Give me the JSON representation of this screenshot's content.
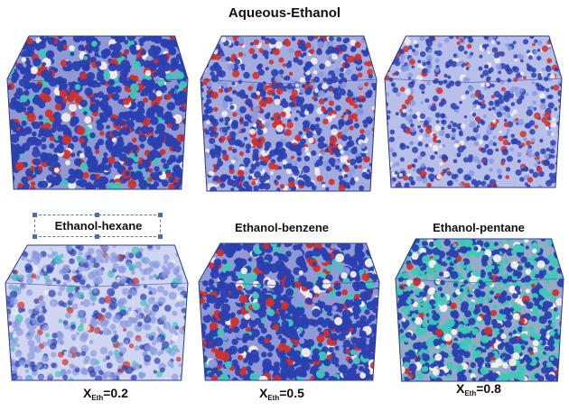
{
  "header": {
    "title": "Aqueous-Ethanol"
  },
  "panels": [
    {
      "label": "",
      "palette": "aqueous_dense"
    },
    {
      "label": "",
      "palette": "aqueous_mixed"
    },
    {
      "label": "",
      "palette": "aqueous_sparse"
    },
    {
      "label": "Ethanol-hexane",
      "palette": "hexane"
    },
    {
      "label": "Ethanol-benzene",
      "palette": "benzene"
    },
    {
      "label": "Ethanol-pentane",
      "palette": "pentane"
    }
  ],
  "fractions": [
    {
      "prefix": "X",
      "sub": "Eth",
      "value": "=0.2"
    },
    {
      "prefix": "X",
      "sub": "Eth",
      "value": "=0.5"
    },
    {
      "prefix": "X",
      "sub": "Eth",
      "value": "=0.8"
    }
  ],
  "colors": {
    "blue": "#2a3fb0",
    "light_blue": "#8a9ae0",
    "red": "#d2302a",
    "white": "#f4f0ec",
    "cyan": "#3fc8b8",
    "edge": "#2b3a8c"
  }
}
